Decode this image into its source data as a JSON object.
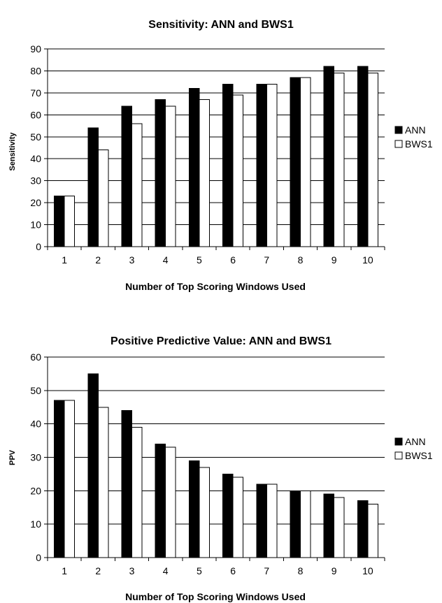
{
  "chart_data": [
    {
      "type": "bar",
      "title": "Sensitivity: ANN and BWS1",
      "xlabel": "Number of Top Scoring Windows Used",
      "ylabel": "Sensitivity",
      "categories": [
        "1",
        "2",
        "3",
        "4",
        "5",
        "6",
        "7",
        "8",
        "9",
        "10"
      ],
      "ylim": [
        0,
        90
      ],
      "yticks": [
        0,
        10,
        20,
        30,
        40,
        50,
        60,
        70,
        80,
        90
      ],
      "grid": true,
      "legend": "right",
      "series": [
        {
          "name": "ANN",
          "color": "#000000",
          "values": [
            23,
            54,
            64,
            67,
            72,
            74,
            74,
            77,
            82,
            82
          ]
        },
        {
          "name": "BWS1",
          "color": "#ffffff",
          "values": [
            23,
            44,
            56,
            64,
            67,
            69,
            74,
            77,
            79,
            79
          ]
        }
      ]
    },
    {
      "type": "bar",
      "title": "Positive Predictive Value: ANN and BWS1",
      "xlabel": "Number of Top Scoring Windows Used",
      "ylabel": "PPV",
      "categories": [
        "1",
        "2",
        "3",
        "4",
        "5",
        "6",
        "7",
        "8",
        "9",
        "10"
      ],
      "ylim": [
        0,
        60
      ],
      "yticks": [
        0,
        10,
        20,
        30,
        40,
        50,
        60
      ],
      "grid": true,
      "legend": "right",
      "series": [
        {
          "name": "ANN",
          "color": "#000000",
          "values": [
            47,
            55,
            44,
            34,
            29,
            25,
            22,
            20,
            19,
            17
          ]
        },
        {
          "name": "BWS1",
          "color": "#ffffff",
          "values": [
            47,
            45,
            39,
            33,
            27,
            24,
            22,
            20,
            18,
            16
          ]
        }
      ]
    }
  ]
}
